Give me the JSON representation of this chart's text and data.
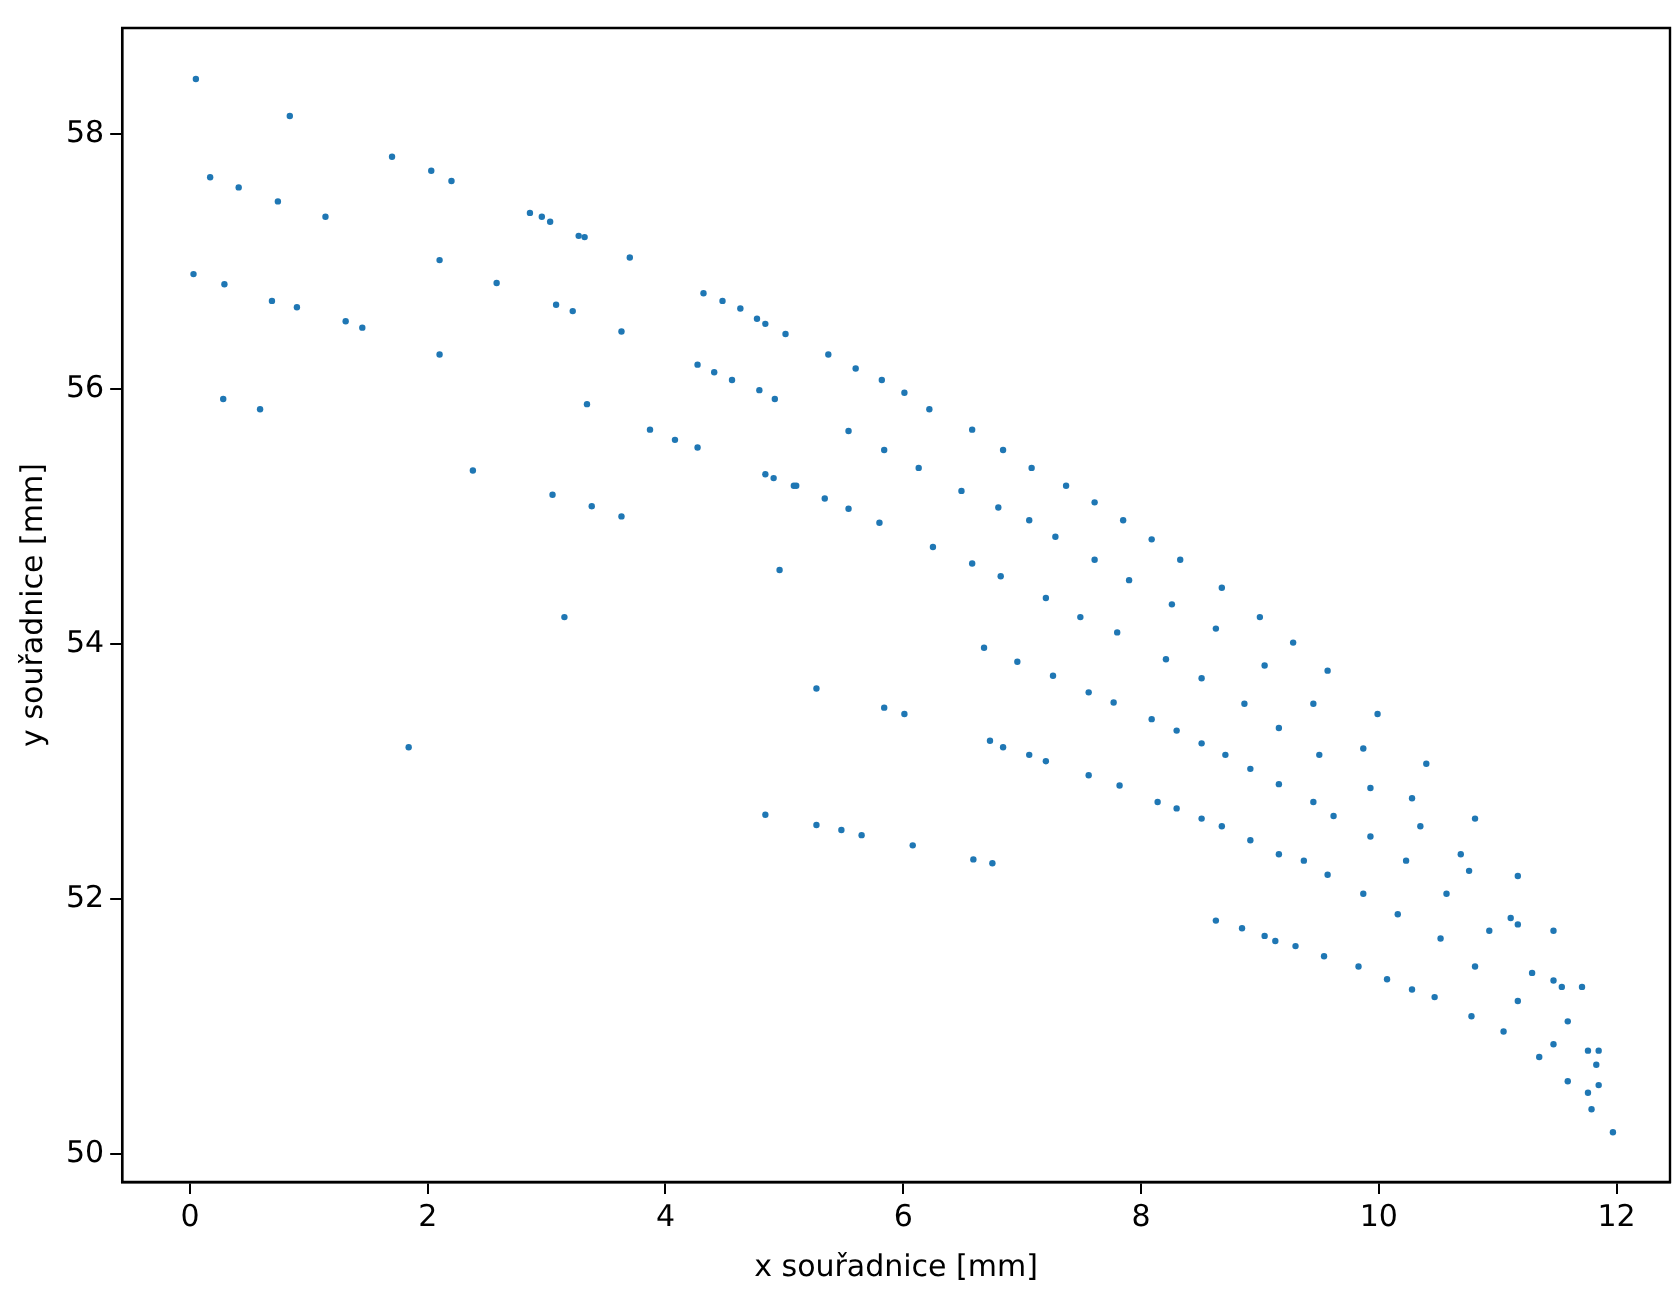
{
  "chart_data": {
    "type": "scatter",
    "xlabel": "x souřadnice [mm]",
    "ylabel": "y souřadnice [mm]",
    "xlim": [
      -0.57,
      12.45
    ],
    "ylim": [
      49.78,
      58.83
    ],
    "xticks": [
      0,
      2,
      4,
      6,
      8,
      10,
      12
    ],
    "yticks": [
      50,
      52,
      54,
      56,
      58
    ],
    "grid": false,
    "legend": false,
    "marker": "circle",
    "series": [
      {
        "color": "#1f77b4",
        "x": [
          0.05,
          0.84,
          0.17,
          0.41,
          0.74,
          1.14,
          0.03,
          0.29,
          0.69,
          0.9,
          1.31,
          1.45,
          0.28,
          0.59,
          1.7,
          2.03,
          2.2,
          2.1,
          2.1,
          2.38,
          1.84,
          3.15,
          2.86,
          2.96,
          3.03,
          3.27,
          3.32,
          3.7,
          2.58,
          3.08,
          3.22,
          3.63,
          3.34,
          3.05,
          3.38,
          3.63,
          4.32,
          4.48,
          4.63,
          4.77,
          4.84,
          5.01,
          4.27,
          4.41,
          4.56,
          4.79,
          4.92,
          3.87,
          4.08,
          4.27,
          4.84,
          4.91,
          5.08,
          4.96,
          5.27,
          5.37,
          5.6,
          5.82,
          6.01,
          6.22,
          6.58,
          6.84,
          7.08,
          7.37,
          7.61,
          7.85,
          8.09,
          8.33,
          8.68,
          9.0,
          9.28,
          9.57,
          9.99,
          10.4,
          10.81,
          11.17,
          11.47,
          11.71,
          11.85,
          11.97,
          5.54,
          5.84,
          6.13,
          6.49,
          6.8,
          7.06,
          7.28,
          7.61,
          7.9,
          8.26,
          8.63,
          9.04,
          9.45,
          9.87,
          10.28,
          10.69,
          11.11,
          11.47,
          11.76,
          5.1,
          5.34,
          5.54,
          5.8,
          6.25,
          6.58,
          6.82,
          7.2,
          7.49,
          7.8,
          8.21,
          8.51,
          8.87,
          9.16,
          9.5,
          9.93,
          10.35,
          10.76,
          11.17,
          11.54,
          11.83,
          5.84,
          6.01,
          6.68,
          6.96,
          7.26,
          7.56,
          7.77,
          8.09,
          8.3,
          8.51,
          8.71,
          8.92,
          9.16,
          9.45,
          9.62,
          9.93,
          10.23,
          10.57,
          10.93,
          11.29,
          11.59,
          11.85,
          6.73,
          6.84,
          7.06,
          7.2,
          7.56,
          7.82,
          8.14,
          8.3,
          8.51,
          8.68,
          8.92,
          9.16,
          9.37,
          9.57,
          9.87,
          10.16,
          10.52,
          10.81,
          11.17,
          11.47,
          11.76,
          4.84,
          5.27,
          5.48,
          5.65,
          6.08,
          6.59,
          6.75,
          8.63,
          8.85,
          9.04,
          9.13,
          9.3,
          9.54,
          9.83,
          10.07,
          10.28,
          10.47,
          10.78,
          11.05,
          11.35,
          11.59,
          11.79
        ],
        "values": [
          58.43,
          58.14,
          57.66,
          57.58,
          57.47,
          57.35,
          56.9,
          56.82,
          56.69,
          56.64,
          56.53,
          56.48,
          55.92,
          55.84,
          57.82,
          57.71,
          57.63,
          57.01,
          56.27,
          55.36,
          53.19,
          54.21,
          57.38,
          57.35,
          57.31,
          57.2,
          57.19,
          57.03,
          56.83,
          56.66,
          56.61,
          56.45,
          55.88,
          55.17,
          55.08,
          55.0,
          56.75,
          56.69,
          56.63,
          56.55,
          56.51,
          56.43,
          56.19,
          56.13,
          56.07,
          55.99,
          55.92,
          55.68,
          55.6,
          55.54,
          55.33,
          55.3,
          55.24,
          54.58,
          53.65,
          56.27,
          56.16,
          56.07,
          55.97,
          55.84,
          55.68,
          55.52,
          55.38,
          55.24,
          55.11,
          54.97,
          54.82,
          54.66,
          54.44,
          54.21,
          54.01,
          53.79,
          53.45,
          53.06,
          52.63,
          52.18,
          51.75,
          51.31,
          50.81,
          50.17,
          55.67,
          55.52,
          55.38,
          55.2,
          55.07,
          54.97,
          54.84,
          54.66,
          54.5,
          54.31,
          54.12,
          53.83,
          53.53,
          53.18,
          52.79,
          52.35,
          51.85,
          51.36,
          50.81,
          55.24,
          55.14,
          55.06,
          54.95,
          54.76,
          54.63,
          54.53,
          54.36,
          54.21,
          54.09,
          53.88,
          53.73,
          53.53,
          53.34,
          53.13,
          52.87,
          52.57,
          52.22,
          51.8,
          51.31,
          50.7,
          53.5,
          53.45,
          53.97,
          53.86,
          53.75,
          53.62,
          53.54,
          53.41,
          53.32,
          53.22,
          53.13,
          53.02,
          52.9,
          52.76,
          52.65,
          52.49,
          52.3,
          52.04,
          51.75,
          51.42,
          51.04,
          50.54,
          53.24,
          53.19,
          53.13,
          53.08,
          52.97,
          52.89,
          52.76,
          52.71,
          52.63,
          52.57,
          52.46,
          52.35,
          52.3,
          52.19,
          52.04,
          51.88,
          51.69,
          51.47,
          51.2,
          50.86,
          50.48,
          52.66,
          52.58,
          52.54,
          52.5,
          52.42,
          52.31,
          52.28,
          51.83,
          51.77,
          51.71,
          51.67,
          51.63,
          51.55,
          51.47,
          51.37,
          51.29,
          51.23,
          51.08,
          50.96,
          50.76,
          50.57,
          50.35
        ]
      }
    ]
  }
}
